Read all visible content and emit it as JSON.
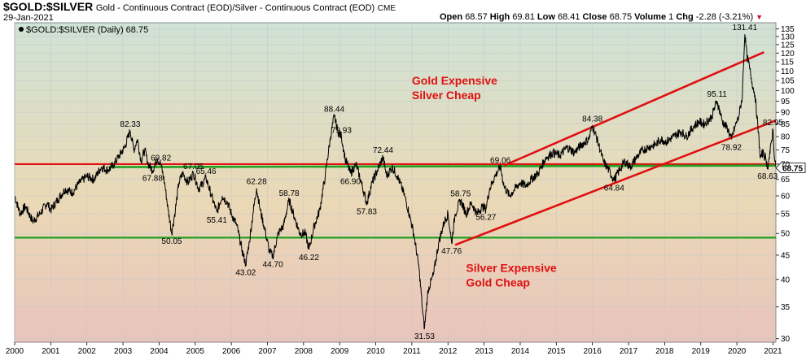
{
  "header": {
    "symbol": "$GOLD:$SILVER",
    "description": "Gold - Continuous Contract (EOD)/Silver - Continuous Contract (EOD)",
    "exchange": "CME",
    "date": "29-Jan-2021",
    "open_label": "Open",
    "open_value": "68.57",
    "high_label": "High",
    "high_value": "69.81",
    "low_label": "Low",
    "low_value": "68.41",
    "close_label": "Close",
    "close_value": "68.75",
    "volume_label": "Volume",
    "volume_value": "1",
    "chg_label": "Chg",
    "chg_value": "-2.28 (-3.21%)",
    "down_arrow_icon": "triangle-down-icon",
    "down_color": "#c8102e"
  },
  "chart_data": {
    "type": "line",
    "title": "$GOLD:$SILVER",
    "legend": "$GOLD:$SILVER (Daily) 68.75",
    "last_value": 68.75,
    "last_value_label": "68.75",
    "y_scale": "log",
    "ylim": [
      29.5,
      139
    ],
    "xlim": [
      2000.0,
      2021.08
    ],
    "y_ticks": [
      30,
      35,
      40,
      45,
      50,
      55,
      60,
      65,
      70,
      75,
      80,
      85,
      90,
      95,
      100,
      105,
      110,
      115,
      120,
      125,
      130,
      135
    ],
    "x_ticks": [
      2000,
      2001,
      2002,
      2003,
      2004,
      2005,
      2006,
      2007,
      2008,
      2009,
      2010,
      2011,
      2012,
      2013,
      2014,
      2015,
      2016,
      2017,
      2018,
      2019,
      2020,
      2021
    ],
    "series": [
      {
        "values": [
          [
            2000.0,
            60
          ],
          [
            2000.15,
            55
          ],
          [
            2000.3,
            57
          ],
          [
            2000.5,
            53
          ],
          [
            2000.7,
            55
          ],
          [
            2000.9,
            58
          ],
          [
            2001.0,
            56
          ],
          [
            2001.2,
            59
          ],
          [
            2001.4,
            62
          ],
          [
            2001.6,
            61
          ],
          [
            2001.8,
            64
          ],
          [
            2002.0,
            66
          ],
          [
            2002.2,
            65
          ],
          [
            2002.4,
            69
          ],
          [
            2002.6,
            68
          ],
          [
            2002.75,
            70
          ],
          [
            2002.9,
            73
          ],
          [
            2003.05,
            76
          ],
          [
            2003.2,
            82.33
          ],
          [
            2003.3,
            75
          ],
          [
            2003.4,
            79
          ],
          [
            2003.5,
            71
          ],
          [
            2003.6,
            75
          ],
          [
            2003.7,
            70
          ],
          [
            2003.82,
            67.88
          ],
          [
            2003.95,
            72
          ],
          [
            2004.05,
            69.82
          ],
          [
            2004.15,
            64
          ],
          [
            2004.25,
            56
          ],
          [
            2004.35,
            50.05
          ],
          [
            2004.45,
            56
          ],
          [
            2004.55,
            64
          ],
          [
            2004.65,
            67
          ],
          [
            2004.8,
            64
          ],
          [
            2004.95,
            67.05
          ],
          [
            2005.1,
            62
          ],
          [
            2005.3,
            65.46
          ],
          [
            2005.45,
            60
          ],
          [
            2005.6,
            55.41
          ],
          [
            2005.75,
            60
          ],
          [
            2005.9,
            58
          ],
          [
            2006.0,
            55
          ],
          [
            2006.15,
            52
          ],
          [
            2006.3,
            46
          ],
          [
            2006.4,
            43.02
          ],
          [
            2006.5,
            48
          ],
          [
            2006.6,
            55
          ],
          [
            2006.7,
            62.28
          ],
          [
            2006.8,
            56
          ],
          [
            2006.95,
            50
          ],
          [
            2007.05,
            46
          ],
          [
            2007.15,
            44.7
          ],
          [
            2007.3,
            50
          ],
          [
            2007.45,
            52
          ],
          [
            2007.6,
            58.78
          ],
          [
            2007.75,
            54
          ],
          [
            2007.9,
            50
          ],
          [
            2008.05,
            50
          ],
          [
            2008.15,
            46.22
          ],
          [
            2008.3,
            52
          ],
          [
            2008.45,
            56
          ],
          [
            2008.6,
            66
          ],
          [
            2008.75,
            80
          ],
          [
            2008.85,
            88.44
          ],
          [
            2008.95,
            82
          ],
          [
            2009.05,
            79.93
          ],
          [
            2009.15,
            72
          ],
          [
            2009.3,
            66.9
          ],
          [
            2009.45,
            70
          ],
          [
            2009.6,
            64
          ],
          [
            2009.75,
            57.83
          ],
          [
            2009.9,
            64
          ],
          [
            2010.05,
            68
          ],
          [
            2010.2,
            72.44
          ],
          [
            2010.3,
            66
          ],
          [
            2010.45,
            69
          ],
          [
            2010.6,
            66
          ],
          [
            2010.8,
            60
          ],
          [
            2010.95,
            54
          ],
          [
            2011.05,
            50
          ],
          [
            2011.2,
            42
          ],
          [
            2011.3,
            34
          ],
          [
            2011.35,
            31.53
          ],
          [
            2011.45,
            38
          ],
          [
            2011.6,
            41
          ],
          [
            2011.75,
            48
          ],
          [
            2011.9,
            53
          ],
          [
            2012.0,
            55
          ],
          [
            2012.1,
            47.76
          ],
          [
            2012.2,
            55
          ],
          [
            2012.35,
            58.75
          ],
          [
            2012.5,
            55
          ],
          [
            2012.65,
            58
          ],
          [
            2012.8,
            55
          ],
          [
            2012.95,
            57
          ],
          [
            2013.05,
            56.27
          ],
          [
            2013.15,
            62
          ],
          [
            2013.3,
            66
          ],
          [
            2013.45,
            69.06
          ],
          [
            2013.55,
            63
          ],
          [
            2013.7,
            60
          ],
          [
            2013.85,
            62
          ],
          [
            2014.0,
            64
          ],
          [
            2014.15,
            63
          ],
          [
            2014.3,
            65
          ],
          [
            2014.5,
            67
          ],
          [
            2014.7,
            72
          ],
          [
            2014.9,
            74
          ],
          [
            2015.1,
            73
          ],
          [
            2015.3,
            76
          ],
          [
            2015.5,
            74
          ],
          [
            2015.7,
            77
          ],
          [
            2015.9,
            79
          ],
          [
            2016.0,
            84.38
          ],
          [
            2016.15,
            78
          ],
          [
            2016.3,
            71
          ],
          [
            2016.45,
            68
          ],
          [
            2016.6,
            64.84
          ],
          [
            2016.75,
            68
          ],
          [
            2016.9,
            71
          ],
          [
            2017.05,
            69
          ],
          [
            2017.2,
            72
          ],
          [
            2017.4,
            75
          ],
          [
            2017.55,
            76
          ],
          [
            2017.75,
            77
          ],
          [
            2017.9,
            79
          ],
          [
            2018.05,
            78
          ],
          [
            2018.25,
            80
          ],
          [
            2018.45,
            82
          ],
          [
            2018.6,
            80
          ],
          [
            2018.8,
            84
          ],
          [
            2018.95,
            86
          ],
          [
            2019.1,
            85
          ],
          [
            2019.3,
            88
          ],
          [
            2019.45,
            95.11
          ],
          [
            2019.6,
            86
          ],
          [
            2019.75,
            83
          ],
          [
            2019.85,
            78.92
          ],
          [
            2019.95,
            84
          ],
          [
            2020.05,
            88
          ],
          [
            2020.15,
            97
          ],
          [
            2020.22,
            131.41
          ],
          [
            2020.28,
            118
          ],
          [
            2020.35,
            112
          ],
          [
            2020.42,
            104
          ],
          [
            2020.5,
            98
          ],
          [
            2020.58,
            84
          ],
          [
            2020.65,
            72
          ],
          [
            2020.72,
            74
          ],
          [
            2020.8,
            72
          ],
          [
            2020.85,
            68.63
          ],
          [
            2020.92,
            74
          ],
          [
            2021.0,
            82.95
          ],
          [
            2021.04,
            72
          ],
          [
            2021.08,
            68.75
          ]
        ]
      }
    ],
    "reference_lines": [
      {
        "value": 70,
        "color": "#e01010"
      },
      {
        "value": 49,
        "color": "#20a020"
      }
    ],
    "channel_lines": [
      {
        "x0": 2013.55,
        "y0": 69.5,
        "x1": 2020.75,
        "y1": 120.5,
        "color": "#e01010"
      },
      {
        "x0": 2012.2,
        "y0": 47.3,
        "x1": 2021.08,
        "y1": 86.5,
        "color": "#e01010"
      }
    ],
    "green_trend": {
      "x0": 2002.6,
      "y0": 69.0,
      "x1": 2021.08,
      "y1": 69.5,
      "color": "#20a020"
    },
    "annotations": [
      {
        "text": "82.33",
        "x": 2003.2,
        "y": 82.33,
        "pos": "above"
      },
      {
        "text": "67.88",
        "x": 2003.82,
        "y": 67.88,
        "pos": "below"
      },
      {
        "text": "69.82",
        "x": 2004.05,
        "y": 69.82,
        "pos": "above"
      },
      {
        "text": "50.05",
        "x": 2004.35,
        "y": 50.05,
        "pos": "below"
      },
      {
        "text": "67.05",
        "x": 2004.95,
        "y": 67.05,
        "pos": "above"
      },
      {
        "text": "65.46",
        "x": 2005.3,
        "y": 65.46,
        "pos": "above"
      },
      {
        "text": "55.41",
        "x": 2005.6,
        "y": 55.41,
        "pos": "below"
      },
      {
        "text": "62.28",
        "x": 2006.7,
        "y": 62.28,
        "pos": "above"
      },
      {
        "text": "43.02",
        "x": 2006.4,
        "y": 43.02,
        "pos": "below"
      },
      {
        "text": "44.70",
        "x": 2007.15,
        "y": 44.7,
        "pos": "below"
      },
      {
        "text": "58.78",
        "x": 2007.6,
        "y": 58.78,
        "pos": "above"
      },
      {
        "text": "46.22",
        "x": 2008.15,
        "y": 46.22,
        "pos": "below"
      },
      {
        "text": "88.44",
        "x": 2008.85,
        "y": 88.44,
        "pos": "above"
      },
      {
        "text": "79.93",
        "x": 2009.05,
        "y": 79.93,
        "pos": "above"
      },
      {
        "text": "66.90",
        "x": 2009.3,
        "y": 66.9,
        "pos": "below"
      },
      {
        "text": "57.83",
        "x": 2009.75,
        "y": 57.83,
        "pos": "below"
      },
      {
        "text": "72.44",
        "x": 2010.2,
        "y": 72.44,
        "pos": "above"
      },
      {
        "text": "31.53",
        "x": 2011.35,
        "y": 31.53,
        "pos": "below"
      },
      {
        "text": "47.76",
        "x": 2012.1,
        "y": 47.76,
        "pos": "below"
      },
      {
        "text": "58.75",
        "x": 2012.35,
        "y": 58.75,
        "pos": "above"
      },
      {
        "text": "56.27",
        "x": 2013.05,
        "y": 56.27,
        "pos": "below"
      },
      {
        "text": "69.06",
        "x": 2013.45,
        "y": 69.06,
        "pos": "above"
      },
      {
        "text": "84.38",
        "x": 2016.0,
        "y": 84.38,
        "pos": "above"
      },
      {
        "text": "64.84",
        "x": 2016.6,
        "y": 64.84,
        "pos": "below"
      },
      {
        "text": "95.11",
        "x": 2019.45,
        "y": 95.11,
        "pos": "above"
      },
      {
        "text": "78.92",
        "x": 2019.85,
        "y": 78.92,
        "pos": "below"
      },
      {
        "text": "131.41",
        "x": 2020.22,
        "y": 131.41,
        "pos": "above"
      },
      {
        "text": "82.95",
        "x": 2021.0,
        "y": 82.95,
        "pos": "above"
      },
      {
        "text": "68.63",
        "x": 2020.85,
        "y": 68.63,
        "pos": "below"
      }
    ],
    "text_annotations": [
      {
        "lines": [
          "Gold Expensive",
          "Silver Cheap"
        ],
        "x": 2011.0,
        "y": 103,
        "color": "#e01010"
      },
      {
        "lines": [
          "Silver Expensive",
          "Gold Cheap"
        ],
        "x": 2012.5,
        "y": 41.5,
        "color": "#e01010"
      }
    ],
    "background_gradient": [
      "#cfe3d6",
      "#ead9b6",
      "#e9c4bc"
    ],
    "line_color": "#000000",
    "grid": true,
    "legend_position": "top-left"
  }
}
